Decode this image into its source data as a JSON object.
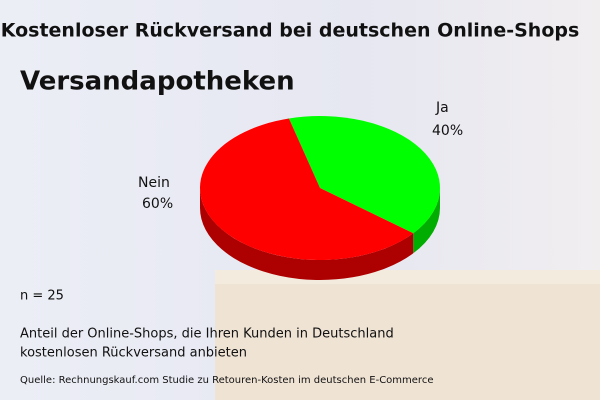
{
  "chart_data": {
    "type": "pie",
    "title": "Kostenloser Rückversand bei deutschen Online-Shops",
    "subtitle": "Versandapotheken",
    "categories": [
      "Ja",
      "Nein"
    ],
    "values": [
      40,
      60
    ],
    "value_labels": [
      "40%",
      "60%"
    ],
    "colors": [
      "#00ff00",
      "#ff0000"
    ],
    "sample": "n = 25",
    "note": [
      "Anteil der Online-Shops, die Ihren Kunden in Deutschland",
      "kostenlosen Rückversand anbieten"
    ],
    "source": "Quelle: Rechnungskauf.com Studie zu Retouren-Kosten im deutschen E-Commerce"
  }
}
